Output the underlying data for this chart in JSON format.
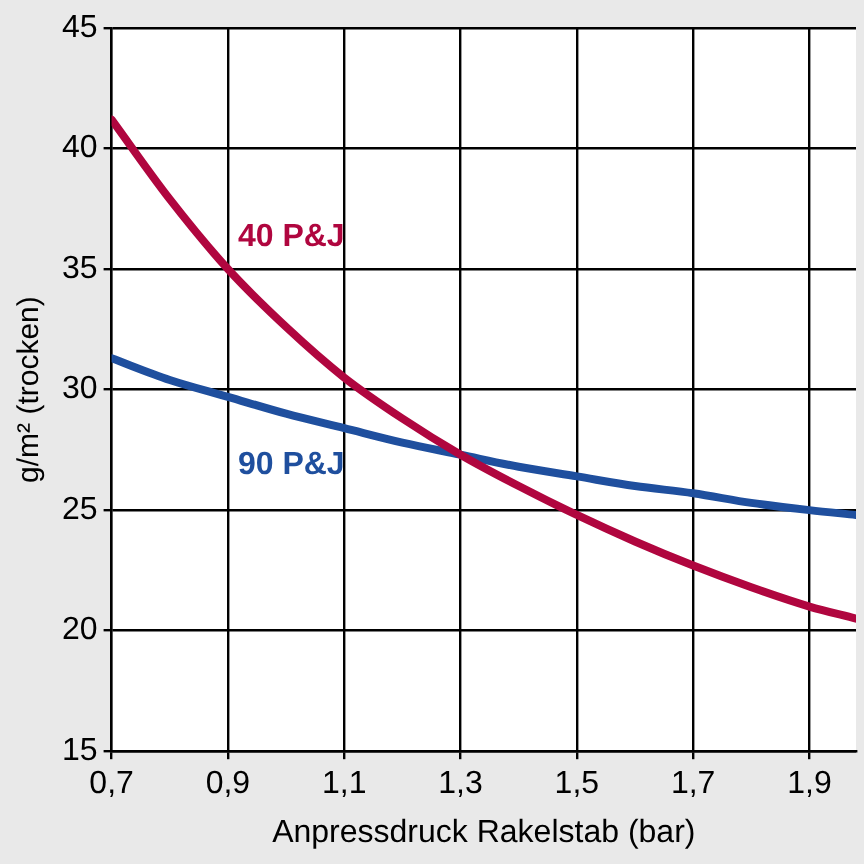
{
  "chart_data": {
    "type": "line",
    "xlabel": "Anpressdruck Rakelstab (bar)",
    "ylabel": "g/m² (trocken)",
    "x": [
      0.7,
      0.8,
      0.9,
      1.0,
      1.1,
      1.2,
      1.3,
      1.4,
      1.5,
      1.6,
      1.7,
      1.8,
      1.9,
      1.98
    ],
    "series": [
      {
        "name": "40 P&J",
        "color": "#b0063f",
        "values": [
          41.2,
          37.9,
          35.0,
          32.6,
          30.5,
          28.8,
          27.3,
          26.0,
          24.8,
          23.7,
          22.7,
          21.8,
          21.0,
          20.5
        ]
      },
      {
        "name": "90 P&J",
        "color": "#1f4f9e",
        "values": [
          31.3,
          30.4,
          29.7,
          29.0,
          28.4,
          27.8,
          27.3,
          26.8,
          26.4,
          26.0,
          25.7,
          25.3,
          25.0,
          24.8
        ]
      }
    ],
    "xlim": [
      0.7,
      1.98
    ],
    "ylim": [
      15,
      45
    ],
    "xticks": [
      {
        "value": 0.7,
        "label": "0,7"
      },
      {
        "value": 0.9,
        "label": "0,9"
      },
      {
        "value": 1.1,
        "label": "1,1"
      },
      {
        "value": 1.3,
        "label": "1,3"
      },
      {
        "value": 1.5,
        "label": "1,5"
      },
      {
        "value": 1.7,
        "label": "1,7"
      },
      {
        "value": 1.9,
        "label": "1,9"
      }
    ],
    "yticks": [
      15,
      20,
      25,
      30,
      35,
      40,
      45
    ],
    "grid": true,
    "legend": false,
    "marker": "none",
    "line_style": "solid"
  }
}
